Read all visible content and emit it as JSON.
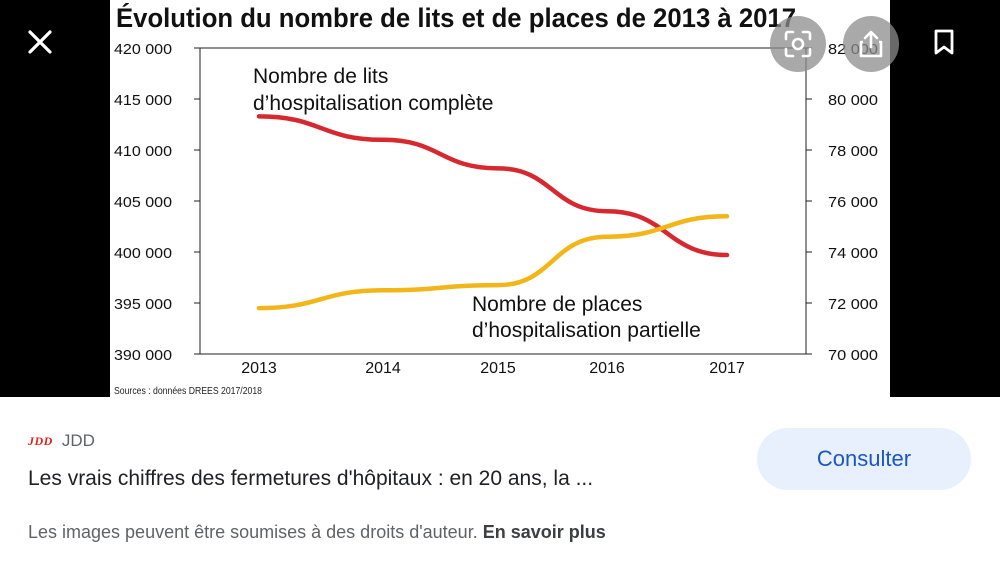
{
  "viewer": {
    "close_icon": "close-icon",
    "lens_icon": "lens-icon",
    "share_icon": "share-icon",
    "bookmark_icon": "bookmark-icon"
  },
  "chart_data": {
    "type": "line",
    "title": "Évolution du nombre de lits et de places de 2013 à 2017",
    "x": [
      "2013",
      "2014",
      "2015",
      "2016",
      "2017"
    ],
    "left_axis": {
      "ticks": [
        "420 000",
        "415 000",
        "410 000",
        "405 000",
        "400 000",
        "395 000",
        "390 000"
      ],
      "ylim": [
        390000,
        420000
      ]
    },
    "right_axis": {
      "ticks": [
        "82 000",
        "80 000",
        "78 000",
        "76 000",
        "74 000",
        "72 000",
        "70 000"
      ],
      "ylim": [
        70000,
        82000
      ]
    },
    "series": [
      {
        "name_lines": [
          "Nombre de lits",
          "d’hospitalisation complète"
        ],
        "axis": "left",
        "color": "#d7282f",
        "values": [
          413300,
          411000,
          408200,
          404000,
          399700
        ]
      },
      {
        "name_lines": [
          "Nombre de places",
          "d’hospitalisation partielle"
        ],
        "axis": "right",
        "color": "#f2b619",
        "values": [
          71800,
          72500,
          72700,
          74600,
          75400
        ]
      }
    ],
    "source": "Sources : données DREES 2017/2018"
  },
  "info": {
    "source_logo": "JDD",
    "source_name": "JDD",
    "headline": "Les vrais chiffres des fermetures d'hôpitaux : en 20 ans, la ...",
    "rights_text": "Les images peuvent être soumises à des droits d'auteur.",
    "learn_more": "En savoir plus",
    "consult_label": "Consulter"
  }
}
